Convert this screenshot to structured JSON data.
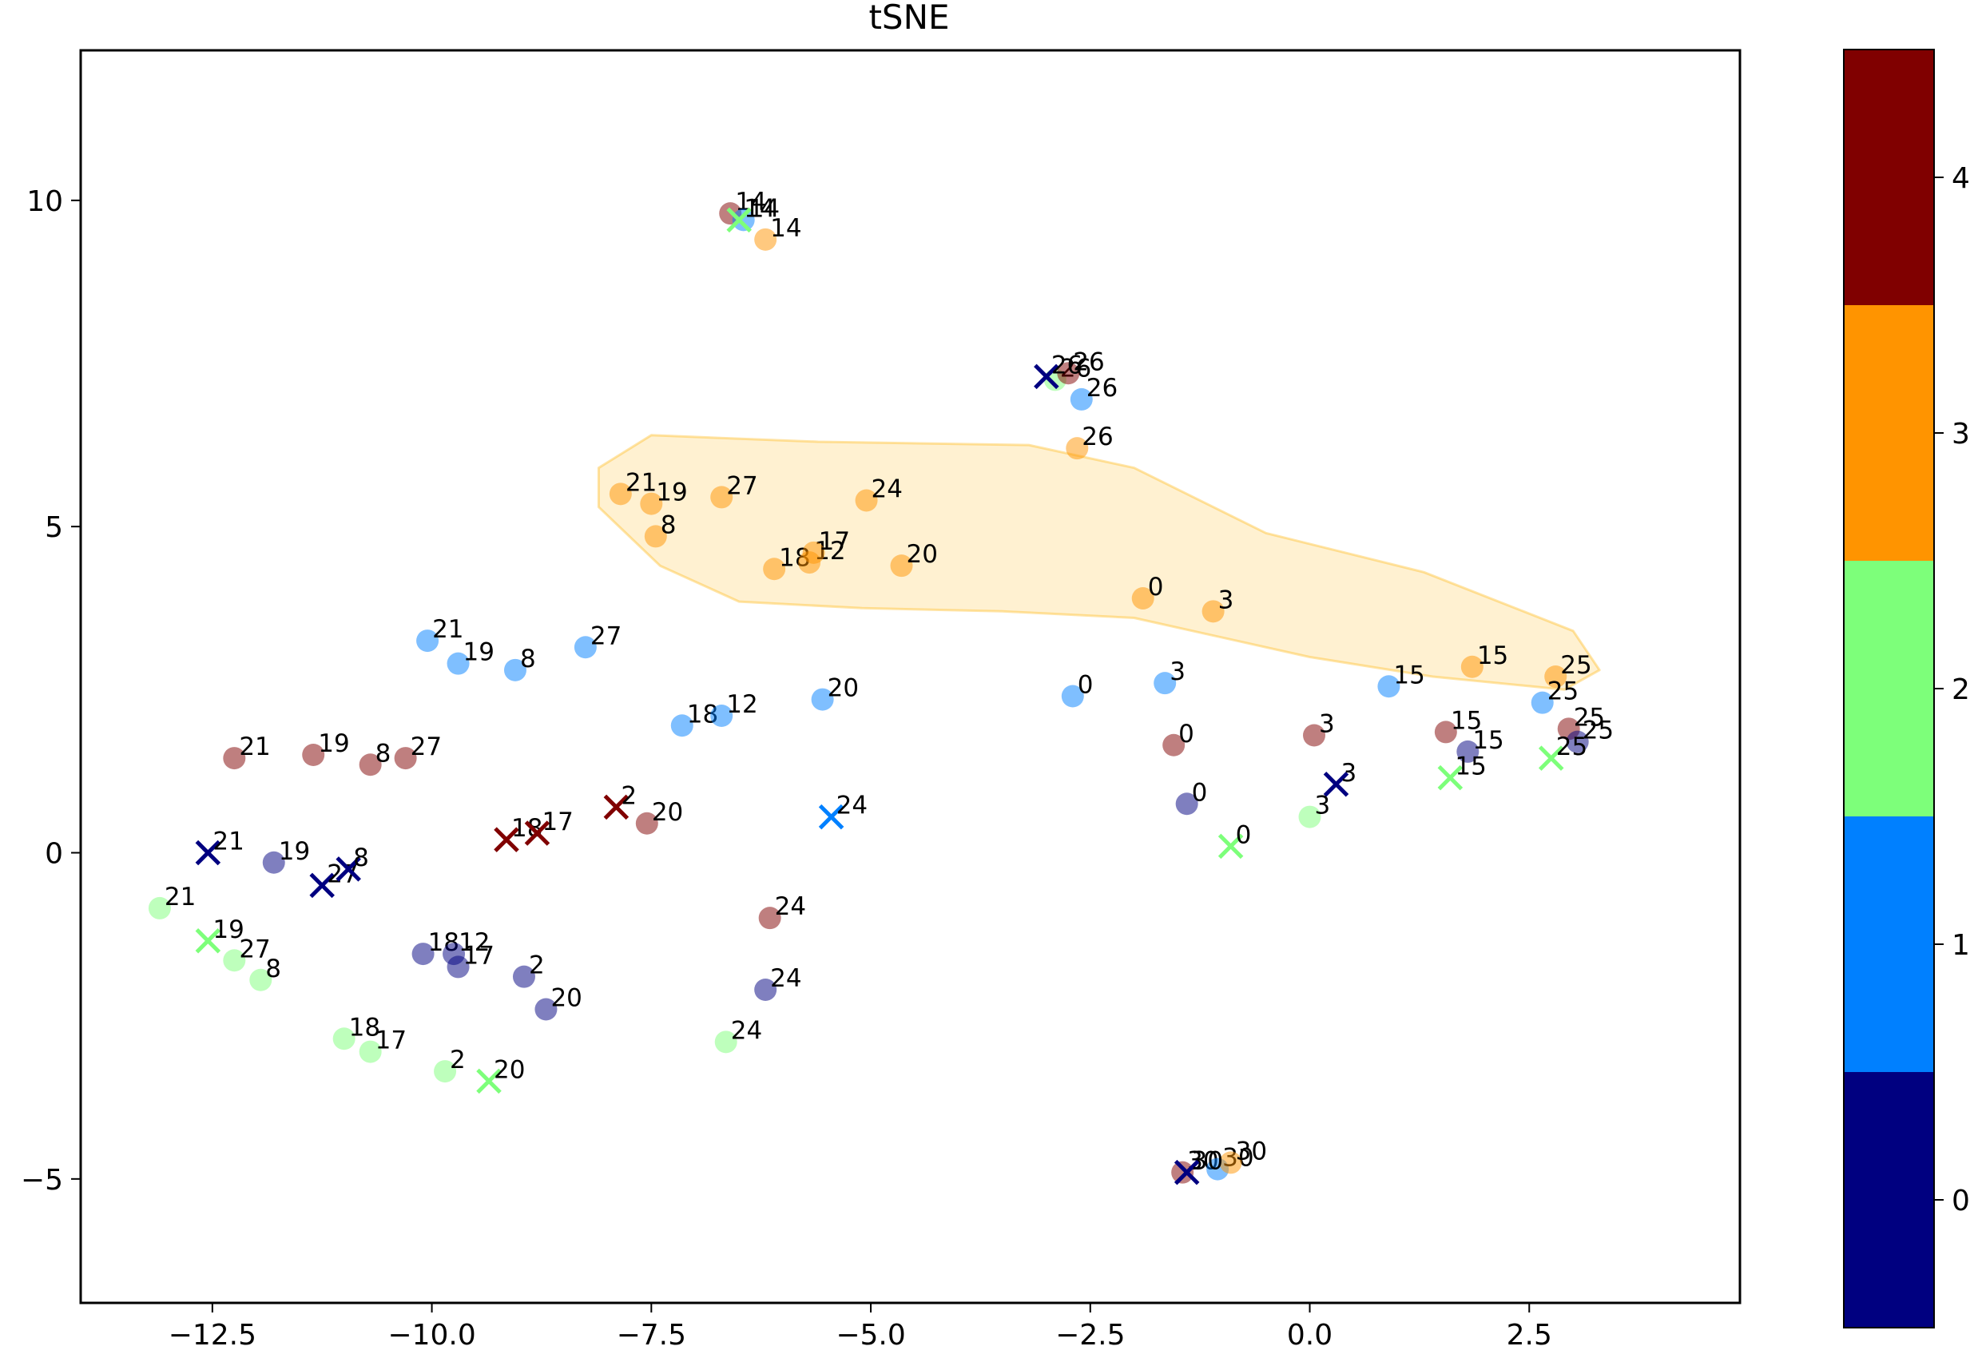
{
  "chart_data": {
    "type": "scatter",
    "title": "tSNE",
    "xlabel": "",
    "ylabel": "",
    "xlim": [
      -14.0,
      4.9
    ],
    "ylim": [
      -6.9,
      12.3
    ],
    "xticks": [
      -12.5,
      -10.0,
      -7.5,
      -5.0,
      -2.5,
      0.0,
      2.5
    ],
    "xtick_labels": [
      "−12.5",
      "−10.0",
      "−7.5",
      "−5.0",
      "−2.5",
      "0.0",
      "2.5"
    ],
    "yticks": [
      -5,
      0,
      5,
      10
    ],
    "ytick_labels": [
      "−5",
      "0",
      "5",
      "10"
    ],
    "grid": false,
    "colorbar": {
      "colormap": "jet",
      "colors": [
        "#000080",
        "#0080ff",
        "#7dff7a",
        "#ff9400",
        "#800000"
      ],
      "tick_labels": [
        "0",
        "1",
        "2",
        "3",
        "4"
      ]
    },
    "highlight_region": {
      "color": "#ffb300",
      "polygon": [
        [
          -8.1,
          5.9
        ],
        [
          -7.5,
          6.4
        ],
        [
          -5.6,
          6.3
        ],
        [
          -3.2,
          6.25
        ],
        [
          -2.0,
          5.9
        ],
        [
          -0.5,
          4.9
        ],
        [
          1.3,
          4.3
        ],
        [
          3.0,
          3.4
        ],
        [
          3.3,
          2.8
        ],
        [
          2.9,
          2.5
        ],
        [
          1.4,
          2.7
        ],
        [
          0.0,
          3.0
        ],
        [
          -2.0,
          3.6
        ],
        [
          -3.5,
          3.7
        ],
        [
          -5.1,
          3.75
        ],
        [
          -6.5,
          3.85
        ],
        [
          -7.4,
          4.4
        ],
        [
          -8.1,
          5.3
        ]
      ]
    },
    "points": [
      {
        "x": -6.6,
        "y": 9.8,
        "c": 4,
        "label": "14",
        "marker": "o"
      },
      {
        "x": -6.45,
        "y": 9.7,
        "c": 1,
        "label": "14",
        "marker": "o"
      },
      {
        "x": -6.2,
        "y": 9.4,
        "c": 3,
        "label": "14",
        "marker": "o"
      },
      {
        "x": -6.5,
        "y": 9.7,
        "c": 2,
        "label": "14",
        "marker": "x"
      },
      {
        "x": -2.9,
        "y": 7.25,
        "c": 2,
        "label": "26",
        "marker": "o"
      },
      {
        "x": -2.75,
        "y": 7.35,
        "c": 4,
        "label": "26",
        "marker": "o"
      },
      {
        "x": -3.0,
        "y": 7.3,
        "c": 0,
        "label": "26",
        "marker": "x"
      },
      {
        "x": -2.6,
        "y": 6.95,
        "c": 1,
        "label": "26",
        "marker": "o"
      },
      {
        "x": -2.65,
        "y": 6.2,
        "c": 3,
        "label": "26",
        "marker": "o"
      },
      {
        "x": -7.85,
        "y": 5.5,
        "c": 3,
        "label": "21",
        "marker": "o"
      },
      {
        "x": -7.5,
        "y": 5.35,
        "c": 3,
        "label": "19",
        "marker": "o"
      },
      {
        "x": -6.7,
        "y": 5.45,
        "c": 3,
        "label": "27",
        "marker": "o"
      },
      {
        "x": -5.05,
        "y": 5.4,
        "c": 3,
        "label": "24",
        "marker": "o"
      },
      {
        "x": -7.45,
        "y": 4.85,
        "c": 3,
        "label": "8",
        "marker": "o"
      },
      {
        "x": -6.1,
        "y": 4.35,
        "c": 3,
        "label": "18",
        "marker": "o"
      },
      {
        "x": -5.7,
        "y": 4.45,
        "c": 3,
        "label": "12",
        "marker": "o"
      },
      {
        "x": -5.65,
        "y": 4.6,
        "c": 3,
        "label": "17",
        "marker": "o"
      },
      {
        "x": -4.65,
        "y": 4.4,
        "c": 3,
        "label": "20",
        "marker": "o"
      },
      {
        "x": -1.9,
        "y": 3.9,
        "c": 3,
        "label": "0",
        "marker": "o"
      },
      {
        "x": -1.1,
        "y": 3.7,
        "c": 3,
        "label": "3",
        "marker": "o"
      },
      {
        "x": 1.85,
        "y": 2.85,
        "c": 3,
        "label": "15",
        "marker": "o"
      },
      {
        "x": 2.8,
        "y": 2.7,
        "c": 3,
        "label": "25",
        "marker": "o"
      },
      {
        "x": -10.05,
        "y": 3.25,
        "c": 1,
        "label": "21",
        "marker": "o"
      },
      {
        "x": -9.7,
        "y": 2.9,
        "c": 1,
        "label": "19",
        "marker": "o"
      },
      {
        "x": -9.05,
        "y": 2.8,
        "c": 1,
        "label": "8",
        "marker": "o"
      },
      {
        "x": -8.25,
        "y": 3.15,
        "c": 1,
        "label": "27",
        "marker": "o"
      },
      {
        "x": -7.15,
        "y": 1.95,
        "c": 1,
        "label": "18",
        "marker": "o"
      },
      {
        "x": -6.7,
        "y": 2.1,
        "c": 1,
        "label": "12",
        "marker": "o"
      },
      {
        "x": -5.55,
        "y": 2.35,
        "c": 1,
        "label": "20",
        "marker": "o"
      },
      {
        "x": -2.7,
        "y": 2.4,
        "c": 1,
        "label": "0",
        "marker": "o"
      },
      {
        "x": -1.65,
        "y": 2.6,
        "c": 1,
        "label": "3",
        "marker": "o"
      },
      {
        "x": 0.9,
        "y": 2.55,
        "c": 1,
        "label": "15",
        "marker": "o"
      },
      {
        "x": 2.65,
        "y": 2.3,
        "c": 1,
        "label": "25",
        "marker": "o"
      },
      {
        "x": -5.45,
        "y": 0.55,
        "c": 1,
        "label": "24",
        "marker": "x"
      },
      {
        "x": -12.25,
        "y": 1.45,
        "c": 4,
        "label": "21",
        "marker": "o"
      },
      {
        "x": -11.35,
        "y": 1.5,
        "c": 4,
        "label": "19",
        "marker": "o"
      },
      {
        "x": -10.7,
        "y": 1.35,
        "c": 4,
        "label": "8",
        "marker": "o"
      },
      {
        "x": -10.3,
        "y": 1.45,
        "c": 4,
        "label": "27",
        "marker": "o"
      },
      {
        "x": -1.55,
        "y": 1.65,
        "c": 4,
        "label": "0",
        "marker": "o"
      },
      {
        "x": 0.05,
        "y": 1.8,
        "c": 4,
        "label": "3",
        "marker": "o"
      },
      {
        "x": 1.55,
        "y": 1.85,
        "c": 4,
        "label": "15",
        "marker": "o"
      },
      {
        "x": 2.95,
        "y": 1.9,
        "c": 4,
        "label": "25",
        "marker": "o"
      },
      {
        "x": -7.55,
        "y": 0.45,
        "c": 4,
        "label": "20",
        "marker": "o"
      },
      {
        "x": -7.9,
        "y": 0.7,
        "c": 4,
        "label": "2",
        "marker": "x"
      },
      {
        "x": -9.15,
        "y": 0.2,
        "c": 4,
        "label": "18",
        "marker": "x"
      },
      {
        "x": -8.8,
        "y": 0.3,
        "c": 4,
        "label": "17",
        "marker": "x"
      },
      {
        "x": -6.15,
        "y": -1.0,
        "c": 4,
        "label": "24",
        "marker": "o"
      },
      {
        "x": 1.8,
        "y": 1.55,
        "c": 0,
        "label": "15",
        "marker": "o"
      },
      {
        "x": 3.05,
        "y": 1.7,
        "c": 0,
        "label": "25",
        "marker": "o"
      },
      {
        "x": 1.6,
        "y": 1.15,
        "c": 2,
        "label": "15",
        "marker": "x"
      },
      {
        "x": 2.75,
        "y": 1.45,
        "c": 2,
        "label": "25",
        "marker": "x"
      },
      {
        "x": 0.3,
        "y": 1.05,
        "c": 0,
        "label": "3",
        "marker": "x"
      },
      {
        "x": -1.4,
        "y": 0.75,
        "c": 0,
        "label": "0",
        "marker": "o"
      },
      {
        "x": 0.0,
        "y": 0.55,
        "c": 2,
        "label": "3",
        "marker": "o"
      },
      {
        "x": -0.9,
        "y": 0.1,
        "c": 2,
        "label": "0",
        "marker": "x"
      },
      {
        "x": -12.55,
        "y": 0.0,
        "c": 0,
        "label": "21",
        "marker": "x"
      },
      {
        "x": -11.8,
        "y": -0.15,
        "c": 0,
        "label": "19",
        "marker": "o"
      },
      {
        "x": -11.25,
        "y": -0.5,
        "c": 0,
        "label": "27",
        "marker": "x"
      },
      {
        "x": -10.95,
        "y": -0.25,
        "c": 0,
        "label": "8",
        "marker": "x"
      },
      {
        "x": -13.1,
        "y": -0.85,
        "c": 2,
        "label": "21",
        "marker": "o"
      },
      {
        "x": -12.55,
        "y": -1.35,
        "c": 2,
        "label": "19",
        "marker": "x"
      },
      {
        "x": -12.25,
        "y": -1.65,
        "c": 2,
        "label": "27",
        "marker": "o"
      },
      {
        "x": -11.95,
        "y": -1.95,
        "c": 2,
        "label": "8",
        "marker": "o"
      },
      {
        "x": -10.1,
        "y": -1.55,
        "c": 0,
        "label": "18",
        "marker": "o"
      },
      {
        "x": -9.75,
        "y": -1.55,
        "c": 0,
        "label": "12",
        "marker": "o"
      },
      {
        "x": -9.7,
        "y": -1.75,
        "c": 0,
        "label": "17",
        "marker": "o"
      },
      {
        "x": -8.95,
        "y": -1.9,
        "c": 0,
        "label": "2",
        "marker": "o"
      },
      {
        "x": -8.7,
        "y": -2.4,
        "c": 0,
        "label": "20",
        "marker": "o"
      },
      {
        "x": -6.2,
        "y": -2.1,
        "c": 0,
        "label": "24",
        "marker": "o"
      },
      {
        "x": -11.0,
        "y": -2.85,
        "c": 2,
        "label": "18",
        "marker": "o"
      },
      {
        "x": -10.7,
        "y": -3.05,
        "c": 2,
        "label": "17",
        "marker": "o"
      },
      {
        "x": -9.85,
        "y": -3.35,
        "c": 2,
        "label": "2",
        "marker": "o"
      },
      {
        "x": -9.35,
        "y": -3.5,
        "c": 2,
        "label": "20",
        "marker": "x"
      },
      {
        "x": -6.65,
        "y": -2.9,
        "c": 2,
        "label": "24",
        "marker": "o"
      },
      {
        "x": -1.45,
        "y": -4.9,
        "c": 4,
        "label": "30",
        "marker": "o"
      },
      {
        "x": -1.05,
        "y": -4.85,
        "c": 1,
        "label": "30",
        "marker": "o"
      },
      {
        "x": -0.9,
        "y": -4.75,
        "c": 3,
        "label": "30",
        "marker": "o"
      },
      {
        "x": -1.4,
        "y": -4.9,
        "c": 0,
        "label": "30",
        "marker": "x"
      }
    ]
  }
}
